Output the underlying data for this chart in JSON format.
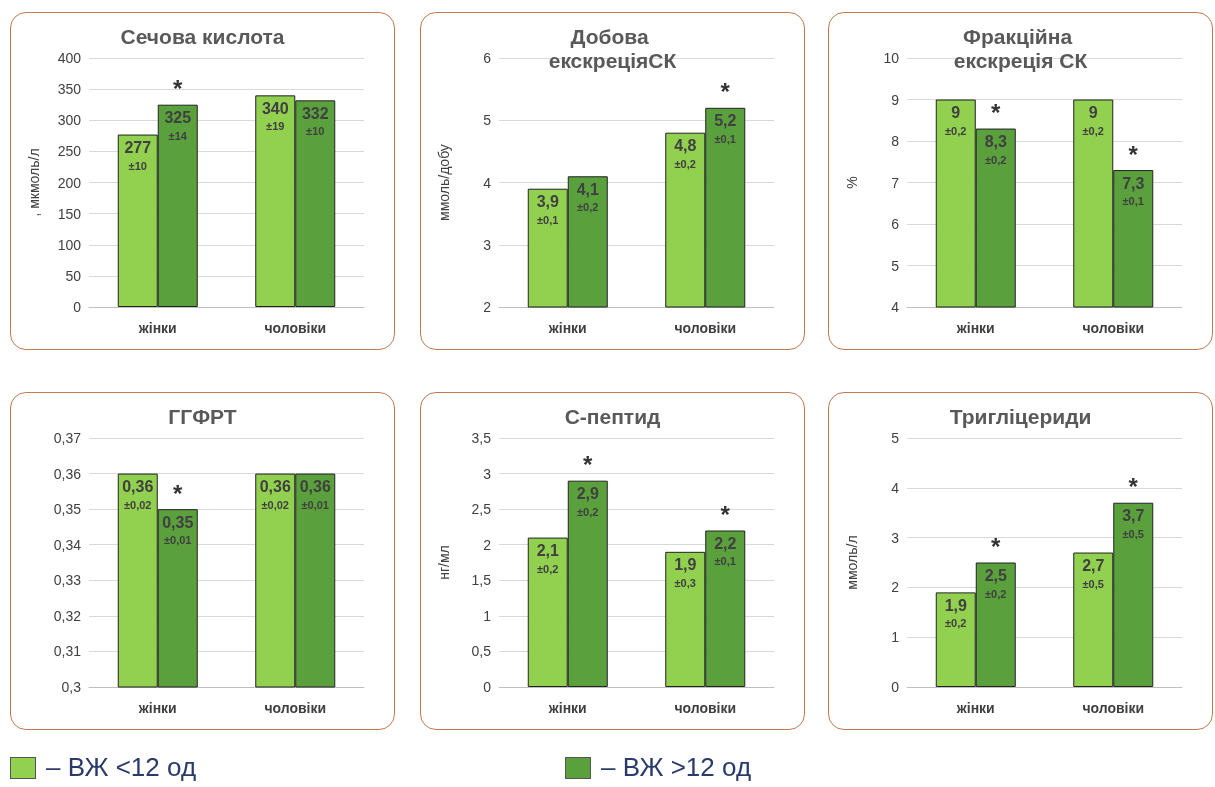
{
  "chart_data": [
    {
      "type": "bar",
      "title": "Сечова кислота",
      "ylabel": ", мкмоль/л",
      "categories": [
        "жінки",
        "чоловіки"
      ],
      "ylim": [
        0,
        400
      ],
      "yticks": [
        0,
        50,
        100,
        150,
        200,
        250,
        300,
        350,
        400
      ],
      "grid": "y",
      "legend": "bottom",
      "series": [
        {
          "name": "– ВЖ <12 од",
          "color": "#92d050",
          "values": [
            277,
            340
          ],
          "value_labels": [
            "277\n±10",
            "340\n±19"
          ]
        },
        {
          "name": "– ВЖ >12 од",
          "color": "#5aa03c",
          "values": [
            325,
            332
          ],
          "value_labels": [
            "325\n±14",
            "332\n±10"
          ]
        }
      ],
      "annotations": [
        {
          "text": "*",
          "x": "жінки",
          "y": 325
        }
      ]
    },
    {
      "type": "bar",
      "title": "Добова екскреціяСК",
      "ylabel": "ммоль/добу",
      "categories": [
        "жінки",
        "чоловіки"
      ],
      "ylim": [
        2,
        6
      ],
      "yticks": [
        2,
        3,
        4,
        5,
        6
      ],
      "grid": "y",
      "series": [
        {
          "color": "#92d050",
          "values": [
            3.9,
            4.8
          ],
          "value_labels": [
            "3,9\n±0,1",
            "4,8\n±0,2"
          ]
        },
        {
          "color": "#5aa03c",
          "values": [
            4.1,
            5.2
          ],
          "value_labels": [
            "4,1\n±0,2",
            "5,2\n±0,1"
          ]
        }
      ],
      "annotations": [
        {
          "text": "*",
          "x": "чоловіки",
          "y": 5.2
        }
      ]
    },
    {
      "type": "bar",
      "title": "Фракційна екскреція СК",
      "ylabel": "%",
      "categories": [
        "жінки",
        "чоловіки"
      ],
      "ylim": [
        4,
        10
      ],
      "yticks": [
        4,
        5,
        6,
        7,
        8,
        9,
        10
      ],
      "grid": "y",
      "series": [
        {
          "color": "#92d050",
          "values": [
            9,
            9
          ],
          "value_labels": [
            "9\n±0,2",
            "9\n±0,2"
          ]
        },
        {
          "color": "#5aa03c",
          "values": [
            8.3,
            7.3
          ],
          "value_labels": [
            "8,3\n±0,2",
            "7,3\n±0,1"
          ]
        }
      ],
      "annotations": [
        {
          "text": "*",
          "x": "жінки",
          "y": 8.3
        },
        {
          "text": "*",
          "x": "чоловіки",
          "y": 7.3
        }
      ]
    },
    {
      "type": "bar",
      "title": "ГГФРТ",
      "categories": [
        "жінки",
        "чоловіки"
      ],
      "ylim": [
        0.3,
        0.37
      ],
      "yticks": [
        {
          "value": 0.3,
          "label": "0,3"
        },
        {
          "value": 0.31,
          "label": "0,31"
        },
        {
          "value": 0.32,
          "label": "0,32"
        },
        {
          "value": 0.33,
          "label": "0,33"
        },
        {
          "value": 0.34,
          "label": "0,34"
        },
        {
          "value": 0.35,
          "label": "0,35"
        },
        {
          "value": 0.36,
          "label": "0,36"
        },
        {
          "value": 0.37,
          "label": "0,37"
        }
      ],
      "grid": "y",
      "series": [
        {
          "color": "#92d050",
          "values": [
            0.36,
            0.36
          ],
          "value_labels": [
            "0,36\n±0,02",
            "0,36\n±0,02"
          ]
        },
        {
          "color": "#5aa03c",
          "values": [
            0.35,
            0.36
          ],
          "value_labels": [
            "0,35\n±0,01",
            "0,36\n±0,01"
          ]
        }
      ],
      "annotations": [
        {
          "text": "*",
          "x": "жінки",
          "y": 0.35
        }
      ]
    },
    {
      "type": "bar",
      "title": "С-пептид",
      "ylabel": "нг/мл",
      "categories": [
        "жінки",
        "чоловіки"
      ],
      "ylim": [
        0,
        3.5
      ],
      "yticks": [
        0,
        {
          "value": 0.5,
          "label": "0,5"
        },
        1,
        {
          "value": 1.5,
          "label": "1,5"
        },
        2,
        {
          "value": 2.5,
          "label": "2,5"
        },
        3,
        {
          "value": 3.5,
          "label": "3,5"
        }
      ],
      "grid": "y",
      "series": [
        {
          "color": "#92d050",
          "values": [
            2.1,
            1.9
          ],
          "value_labels": [
            "2,1\n±0,2",
            "1,9\n±0,3"
          ]
        },
        {
          "color": "#5aa03c",
          "values": [
            2.9,
            2.2
          ],
          "value_labels": [
            "2,9\n±0,2",
            "2,2\n±0,1"
          ]
        }
      ],
      "annotations": [
        {
          "text": "*",
          "x": "жінки",
          "y": 2.9
        },
        {
          "text": "*",
          "x": "чоловіки",
          "y": 2.2
        }
      ]
    },
    {
      "type": "bar",
      "title": "Тригліцериди",
      "ylabel": "ммоль/л",
      "categories": [
        "жінки",
        "чоловіки"
      ],
      "ylim": [
        0,
        5
      ],
      "yticks": [
        0,
        1,
        2,
        3,
        4,
        5
      ],
      "grid": "y",
      "series": [
        {
          "color": "#92d050",
          "values": [
            1.9,
            2.7
          ],
          "value_labels": [
            "1,9\n±0,2",
            "2,7\n±0,5"
          ]
        },
        {
          "color": "#5aa03c",
          "values": [
            2.5,
            3.7
          ],
          "value_labels": [
            "2,5\n±0,2",
            "3,7\n±0,5"
          ]
        }
      ],
      "annotations": [
        {
          "text": "*",
          "x": "жінки",
          "y": 2.5
        },
        {
          "text": "*",
          "x": "чоловіки",
          "y": 3.7
        }
      ]
    }
  ]
}
